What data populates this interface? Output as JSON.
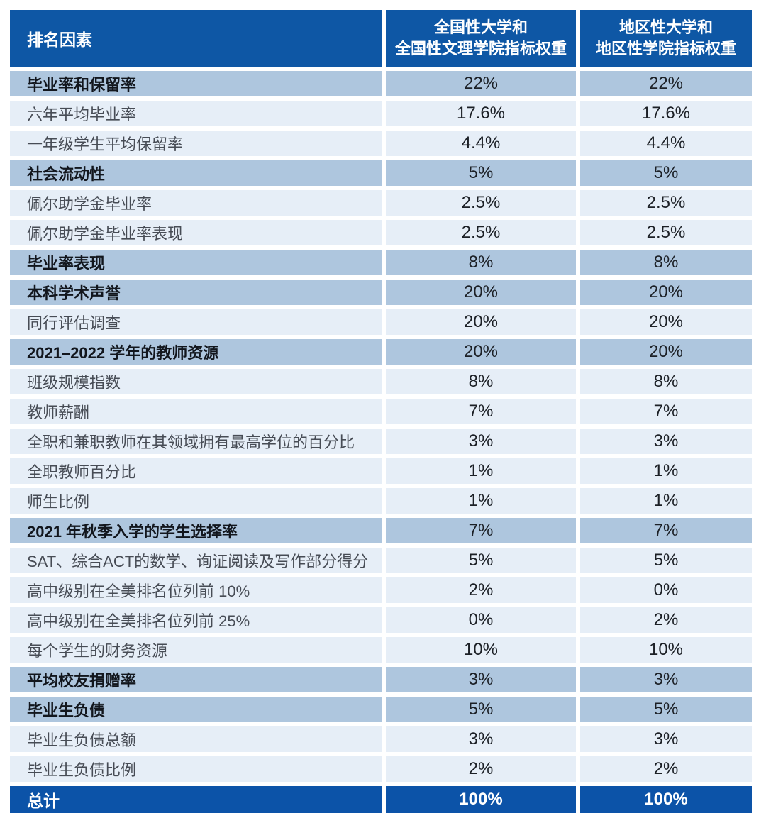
{
  "table": {
    "header": {
      "factor": "排名因素",
      "national_line1": "全国性大学和",
      "national_line2": "全国性文理学院指标权重",
      "regional_line1": "地区性大学和",
      "regional_line2": "地区性学院指标权重"
    },
    "rows": [
      {
        "label": "毕业率和保留率",
        "national": "22%",
        "regional": "22%",
        "emphasis": true
      },
      {
        "label": "六年平均毕业率",
        "national": "17.6%",
        "regional": "17.6%",
        "emphasis": false
      },
      {
        "label": "一年级学生平均保留率",
        "national": "4.4%",
        "regional": "4.4%",
        "emphasis": false
      },
      {
        "label": "社会流动性",
        "national": "5%",
        "regional": "5%",
        "emphasis": true
      },
      {
        "label": "佩尔助学金毕业率",
        "national": "2.5%",
        "regional": "2.5%",
        "emphasis": false
      },
      {
        "label": "佩尔助学金毕业率表现",
        "national": "2.5%",
        "regional": "2.5%",
        "emphasis": false
      },
      {
        "label": "毕业率表现",
        "national": "8%",
        "regional": "8%",
        "emphasis": true
      },
      {
        "label": "本科学术声誉",
        "national": "20%",
        "regional": "20%",
        "emphasis": true
      },
      {
        "label": "同行评估调查",
        "national": "20%",
        "regional": "20%",
        "emphasis": false
      },
      {
        "label": "2021–2022 学年的教师资源",
        "national": "20%",
        "regional": "20%",
        "emphasis": true
      },
      {
        "label": "班级规模指数",
        "national": "8%",
        "regional": "8%",
        "emphasis": false
      },
      {
        "label": "教师薪酬",
        "national": "7%",
        "regional": "7%",
        "emphasis": false
      },
      {
        "label": "全职和兼职教师在其领域拥有最高学位的百分比",
        "national": "3%",
        "regional": "3%",
        "emphasis": false
      },
      {
        "label": "全职教师百分比",
        "national": "1%",
        "regional": "1%",
        "emphasis": false
      },
      {
        "label": "师生比例",
        "national": "1%",
        "regional": "1%",
        "emphasis": false
      },
      {
        "label": "2021 年秋季入学的学生选择率",
        "national": "7%",
        "regional": "7%",
        "emphasis": true
      },
      {
        "label": "SAT、综合ACT的数学、询证阅读及写作部分得分",
        "national": "5%",
        "regional": "5%",
        "emphasis": false
      },
      {
        "label": "高中级别在全美排名位列前 10%",
        "national": "2%",
        "regional": "0%",
        "emphasis": false
      },
      {
        "label": "高中级别在全美排名位列前 25%",
        "national": "0%",
        "regional": "2%",
        "emphasis": false
      },
      {
        "label": "每个学生的财务资源",
        "national": "10%",
        "regional": "10%",
        "emphasis": false
      },
      {
        "label": "平均校友捐赠率",
        "national": "3%",
        "regional": "3%",
        "emphasis": true
      },
      {
        "label": "毕业生负债",
        "national": "5%",
        "regional": "5%",
        "emphasis": true
      },
      {
        "label": "毕业生负债总额",
        "national": "3%",
        "regional": "3%",
        "emphasis": false
      },
      {
        "label": "毕业生负债比例",
        "national": "2%",
        "regional": "2%",
        "emphasis": false
      }
    ],
    "total": {
      "label": "总计",
      "national": "100%",
      "regional": "100%"
    },
    "colors": {
      "header_bg": "#0e57a5",
      "category_bg": "#aec6de",
      "row_bg": "#e6eef7",
      "total_bg": "#0c53a8"
    }
  }
}
